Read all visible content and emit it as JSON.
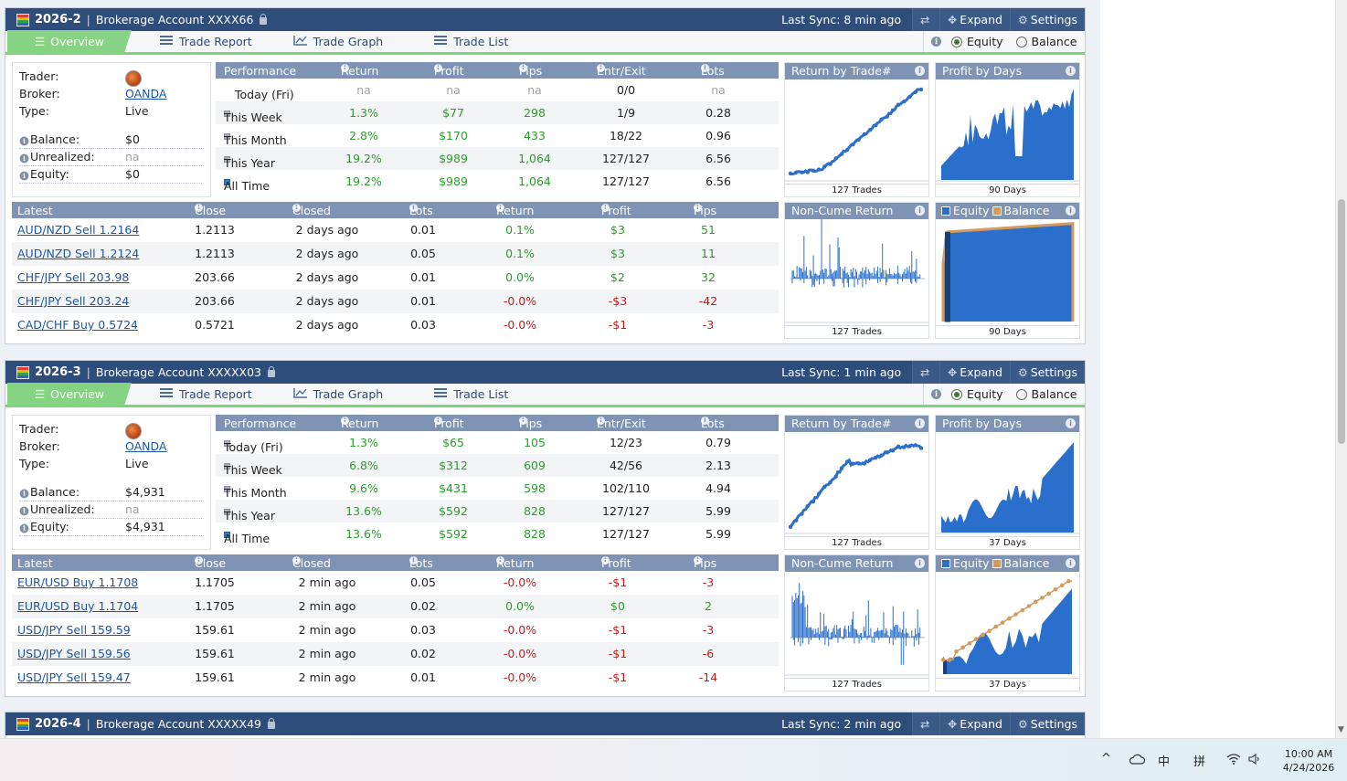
{
  "accounts": [
    {
      "code": "2026-2",
      "name": "Brokerage Account XXXX66",
      "last_sync": "Last Sync: 8 min ago",
      "expand": "Expand",
      "settings": "Settings",
      "tabs": [
        "Overview",
        "Trade Report",
        "Trade Graph",
        "Trade List"
      ],
      "modes": [
        "Equity",
        "Balance"
      ],
      "info": {
        "trader_label": "Trader:",
        "broker_label": "Broker:",
        "broker": "OANDA",
        "type_label": "Type:",
        "type": "Live",
        "balance_label": "Balance:",
        "balance": "$0",
        "unrealized_label": "Unrealized:",
        "unrealized": "na",
        "equity_label": "Equity:",
        "equity": "$0"
      },
      "performance": {
        "headers": [
          "Performance",
          "Return",
          "Profit",
          "Pips",
          "Entr/Exit",
          "Lots"
        ],
        "rows": [
          {
            "period": "Today (Fri)",
            "ret": "na",
            "profit": "na",
            "pips": "na",
            "entr": "0/0",
            "lots": "na"
          },
          {
            "period": "This Week",
            "ret": "1.3%",
            "profit": "$77",
            "pips": "298",
            "entr": "1/9",
            "lots": "0.28"
          },
          {
            "period": "This Month",
            "ret": "2.8%",
            "profit": "$170",
            "pips": "433",
            "entr": "18/22",
            "lots": "0.96"
          },
          {
            "period": "This Year",
            "ret": "19.2%",
            "profit": "$989",
            "pips": "1,064",
            "entr": "127/127",
            "lots": "6.56"
          },
          {
            "period": "All Time",
            "ret": "19.2%",
            "profit": "$989",
            "pips": "1,064",
            "entr": "127/127",
            "lots": "6.56"
          }
        ]
      },
      "trades": {
        "headers": [
          "Latest Closed Trades",
          "Close",
          "Closed",
          "Lots",
          "Return",
          "Profit",
          "Pips"
        ],
        "rows": [
          {
            "trade": "AUD/NZD Sell 1.2164",
            "close": "1.2113",
            "closed": "2 days ago",
            "lots": "0.01",
            "ret": "0.1%",
            "profit": "$3",
            "pips": "51",
            "pos": true
          },
          {
            "trade": "AUD/NZD Sell 1.2124",
            "close": "1.2113",
            "closed": "2 days ago",
            "lots": "0.05",
            "ret": "0.1%",
            "profit": "$3",
            "pips": "11",
            "pos": true
          },
          {
            "trade": "CHF/JPY Sell 203.98",
            "close": "203.66",
            "closed": "2 days ago",
            "lots": "0.01",
            "ret": "0.0%",
            "profit": "$2",
            "pips": "32",
            "pos": true
          },
          {
            "trade": "CHF/JPY Sell 203.24",
            "close": "203.66",
            "closed": "2 days ago",
            "lots": "0.01",
            "ret": "-0.0%",
            "profit": "-$3",
            "pips": "-42",
            "pos": false
          },
          {
            "trade": "CAD/CHF Buy 0.5724",
            "close": "0.5721",
            "closed": "2 days ago",
            "lots": "0.03",
            "ret": "-0.0%",
            "profit": "-$1",
            "pips": "-3",
            "pos": false
          }
        ]
      },
      "charts": {
        "return_title": "Return by Trade#",
        "return_foot": "127 Trades",
        "profit_title": "Profit by Days",
        "profit_foot": "90 Days",
        "noncume_title": "Non-Cume Return",
        "noncume_foot": "127 Trades",
        "eq_label": "Equity",
        "bal_label": "Balance",
        "eb_foot": "90 Days"
      }
    },
    {
      "code": "2026-3",
      "name": "Brokerage Account XXXXX03",
      "last_sync": "Last Sync: 1 min ago",
      "expand": "Expand",
      "settings": "Settings",
      "tabs": [
        "Overview",
        "Trade Report",
        "Trade Graph",
        "Trade List"
      ],
      "modes": [
        "Equity",
        "Balance"
      ],
      "info": {
        "trader_label": "Trader:",
        "broker_label": "Broker:",
        "broker": "OANDA",
        "type_label": "Type:",
        "type": "Live",
        "balance_label": "Balance:",
        "balance": "$4,931",
        "unrealized_label": "Unrealized:",
        "unrealized": "na",
        "equity_label": "Equity:",
        "equity": "$4,931"
      },
      "performance": {
        "headers": [
          "Performance",
          "Return",
          "Profit",
          "Pips",
          "Entr/Exit",
          "Lots"
        ],
        "rows": [
          {
            "period": "Today (Fri)",
            "ret": "1.3%",
            "profit": "$65",
            "pips": "105",
            "entr": "12/23",
            "lots": "0.79"
          },
          {
            "period": "This Week",
            "ret": "6.8%",
            "profit": "$312",
            "pips": "609",
            "entr": "42/56",
            "lots": "2.13"
          },
          {
            "period": "This Month",
            "ret": "9.6%",
            "profit": "$431",
            "pips": "598",
            "entr": "102/110",
            "lots": "4.94"
          },
          {
            "period": "This Year",
            "ret": "13.6%",
            "profit": "$592",
            "pips": "828",
            "entr": "127/127",
            "lots": "5.99"
          },
          {
            "period": "All Time",
            "ret": "13.6%",
            "profit": "$592",
            "pips": "828",
            "entr": "127/127",
            "lots": "5.99"
          }
        ]
      },
      "trades": {
        "headers": [
          "Latest Closed Trades",
          "Close",
          "Closed",
          "Lots",
          "Return",
          "Profit",
          "Pips"
        ],
        "rows": [
          {
            "trade": "EUR/USD Buy 1.1708",
            "close": "1.1705",
            "closed": "2 min ago",
            "lots": "0.05",
            "ret": "-0.0%",
            "profit": "-$1",
            "pips": "-3",
            "pos": false
          },
          {
            "trade": "EUR/USD Buy 1.1704",
            "close": "1.1705",
            "closed": "2 min ago",
            "lots": "0.02",
            "ret": "0.0%",
            "profit": "$0",
            "pips": "2",
            "pos": true
          },
          {
            "trade": "USD/JPY Sell 159.59",
            "close": "159.61",
            "closed": "2 min ago",
            "lots": "0.03",
            "ret": "-0.0%",
            "profit": "-$1",
            "pips": "-3",
            "pos": false
          },
          {
            "trade": "USD/JPY Sell 159.56",
            "close": "159.61",
            "closed": "2 min ago",
            "lots": "0.02",
            "ret": "-0.0%",
            "profit": "-$1",
            "pips": "-6",
            "pos": false
          },
          {
            "trade": "USD/JPY Sell 159.47",
            "close": "159.61",
            "closed": "2 min ago",
            "lots": "0.01",
            "ret": "-0.0%",
            "profit": "-$1",
            "pips": "-14",
            "pos": false
          }
        ]
      },
      "charts": {
        "return_title": "Return by Trade#",
        "return_foot": "127 Trades",
        "profit_title": "Profit by Days",
        "profit_foot": "37 Days",
        "noncume_title": "Non-Cume Return",
        "noncume_foot": "127 Trades",
        "eq_label": "Equity",
        "bal_label": "Balance",
        "eb_foot": "37 Days"
      }
    },
    {
      "code": "2026-4",
      "name": "Brokerage Account XXXXX49",
      "last_sync": "Last Sync: 2 min ago",
      "expand": "Expand",
      "settings": "Settings"
    }
  ],
  "colors": {
    "header": "#2f4d7a",
    "accent_green": "#86d384",
    "chart_blue": "#2b6fcc",
    "balance_orange": "#d59a5c",
    "pos": "#2a9d2a",
    "neg": "#cc1a1a"
  },
  "taskbar": {
    "ime1": "中",
    "ime2": "拼",
    "time": "10:00 AM",
    "date": "4/24/2026"
  }
}
